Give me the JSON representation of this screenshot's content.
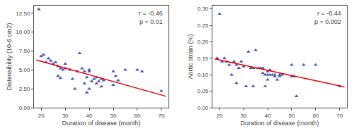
{
  "chart_data": [
    {
      "type": "scatter",
      "annotations": [
        "r = -0.46\np = 0.01"
      ],
      "xlabel": "Duration of disease (month)",
      "ylabel": "Distensibility (10-6 cm2)",
      "xlim": [
        17,
        73
      ],
      "ylim": [
        0,
        13.5
      ],
      "xticks": [
        20,
        30,
        40,
        50,
        60,
        70
      ],
      "yticks": [
        {
          "value": 0.0,
          "label": "0.00"
        },
        {
          "value": 2.5,
          "label": "2.50"
        },
        {
          "value": 5.0,
          "label": "5.00"
        },
        {
          "value": 7.5,
          "label": "7.50"
        },
        {
          "value": 10.0,
          "label": "10.00"
        },
        {
          "value": 12.5,
          "label": "12.50"
        }
      ],
      "grid": false,
      "series": [
        {
          "type": "scatter",
          "marker": "triangle-up",
          "color": "#4a5aaa",
          "x": [
            19,
            20,
            21,
            22,
            23,
            24,
            25,
            26,
            27,
            27,
            28,
            28,
            29,
            30,
            30,
            32,
            33,
            34,
            35,
            36,
            37,
            38,
            38,
            39,
            39,
            40,
            40,
            40,
            41,
            42,
            43,
            43,
            44,
            45,
            45,
            46,
            50,
            50,
            51,
            52,
            55,
            60,
            62,
            70
          ],
          "values": [
            13.0,
            6.8,
            7.0,
            6.0,
            6.5,
            6.2,
            5.8,
            6.0,
            5.5,
            4.2,
            5.2,
            3.9,
            5.0,
            5.8,
            5.2,
            5.0,
            3.8,
            2.5,
            4.8,
            7.2,
            5.2,
            3.2,
            4.8,
            4.0,
            2.0,
            5.0,
            4.8,
            2.5,
            3.5,
            3.8,
            4.0,
            3.2,
            3.5,
            3.8,
            2.8,
            3.6,
            4.8,
            3.0,
            4.2,
            3.6,
            5.0,
            5.0,
            4.8,
            2.2
          ]
        },
        {
          "type": "line",
          "color": "#e8000d",
          "x": [
            18,
            72
          ],
          "values": [
            6.3,
            1.5
          ]
        }
      ]
    },
    {
      "type": "scatter",
      "annotations": [
        "r = -0.44\np = 0.002"
      ],
      "xlabel": "Duration of disease (month)",
      "ylabel": "Aortic strain (%)",
      "xlim": [
        17,
        73
      ],
      "ylim": [
        0,
        0.31
      ],
      "xticks": [
        20,
        30,
        40,
        50,
        60,
        70
      ],
      "yticks": [
        {
          "value": 0.0,
          "label": "0.00"
        },
        {
          "value": 0.05,
          "label": "0.05"
        },
        {
          "value": 0.1,
          "label": "0.10"
        },
        {
          "value": 0.15,
          "label": "0.15"
        },
        {
          "value": 0.2,
          "label": "0.20"
        },
        {
          "value": 0.25,
          "label": "0.25"
        },
        {
          "value": 0.3,
          "label": "0.30"
        }
      ],
      "grid": false,
      "series": [
        {
          "type": "scatter",
          "marker": "triangle-up",
          "color": "#4a5aaa",
          "x": [
            19,
            20,
            21,
            22,
            23,
            24,
            25,
            26,
            27,
            27,
            28,
            29,
            30,
            31,
            32,
            33,
            34,
            34,
            35,
            36,
            37,
            38,
            38,
            39,
            39,
            40,
            40,
            40,
            41,
            41,
            42,
            43,
            43,
            44,
            45,
            45,
            46,
            50,
            50,
            51,
            52,
            55,
            60,
            70
          ],
          "values": [
            0.15,
            0.285,
            0.14,
            0.15,
            0.14,
            0.13,
            0.1,
            0.14,
            0.13,
            0.075,
            0.12,
            0.14,
            0.125,
            0.065,
            0.17,
            0.12,
            0.065,
            0.12,
            0.175,
            0.12,
            0.12,
            0.105,
            0.12,
            0.1,
            0.065,
            0.11,
            0.1,
            0.085,
            0.115,
            0.1,
            0.1,
            0.1,
            0.095,
            0.085,
            0.1,
            0.095,
            0.1,
            0.13,
            0.095,
            0.095,
            0.035,
            0.13,
            0.13,
            0.065
          ]
        },
        {
          "type": "line",
          "color": "#e8000d",
          "x": [
            18,
            72
          ],
          "values": [
            0.148,
            0.063
          ]
        }
      ]
    }
  ]
}
